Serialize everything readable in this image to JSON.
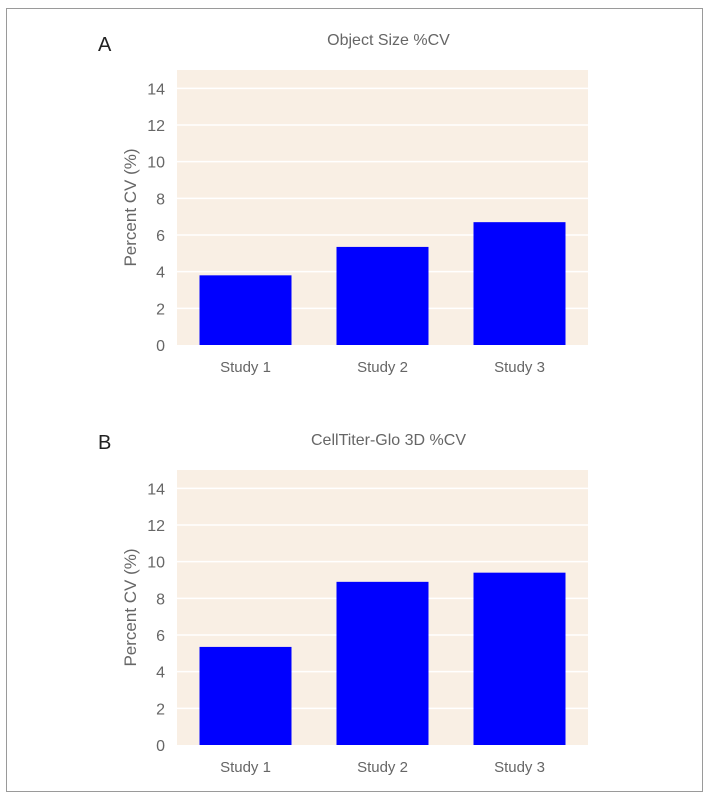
{
  "colors": {
    "plot_background": "#f9efe4",
    "bar": "#0000ff",
    "gridline": "#ffffff",
    "text": "#666666",
    "frame": "#9a9a9a"
  },
  "chart_data": [
    {
      "panel_label": "A",
      "type": "bar",
      "title": "Object Size %CV",
      "xlabel": "",
      "ylabel": "Percent CV  (%)",
      "categories": [
        "Study 1",
        "Study 2",
        "Study 3"
      ],
      "values": [
        3.8,
        5.35,
        6.7
      ],
      "ylim": [
        0,
        15
      ],
      "yticks": [
        0,
        2,
        4,
        6,
        8,
        10,
        12,
        14
      ],
      "grid": true,
      "legend": "none"
    },
    {
      "panel_label": "B",
      "type": "bar",
      "title": "CellTiter-Glo 3D %CV",
      "xlabel": "",
      "ylabel": "Percent CV  (%)",
      "categories": [
        "Study 1",
        "Study 2",
        "Study 3"
      ],
      "values": [
        5.35,
        8.9,
        9.4
      ],
      "ylim": [
        0,
        15
      ],
      "yticks": [
        0,
        2,
        4,
        6,
        8,
        10,
        12,
        14
      ],
      "grid": true,
      "legend": "none"
    }
  ]
}
